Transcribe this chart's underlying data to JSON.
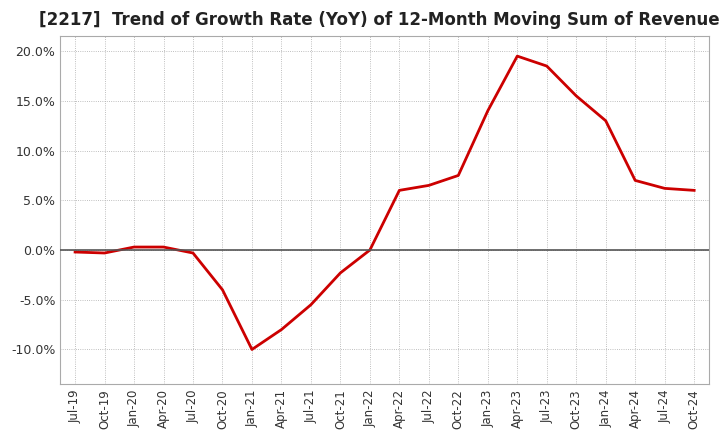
{
  "title": "[2217]  Trend of Growth Rate (YoY) of 12-Month Moving Sum of Revenues",
  "title_fontsize": 12,
  "background_color": "#ffffff",
  "plot_background_color": "#ffffff",
  "grid_color": "#aaaaaa",
  "line_color": "#cc0000",
  "zero_line_color": "#555555",
  "line_width": 2.0,
  "ylim": [
    -0.135,
    0.215
  ],
  "yticks": [
    -0.1,
    -0.05,
    0.0,
    0.05,
    0.1,
    0.15,
    0.2
  ],
  "x_labels": [
    "Jul-19",
    "Oct-19",
    "Jan-20",
    "Apr-20",
    "Jul-20",
    "Oct-20",
    "Jan-21",
    "Apr-21",
    "Jul-21",
    "Oct-21",
    "Jan-22",
    "Apr-22",
    "Jul-22",
    "Oct-22",
    "Jan-23",
    "Apr-23",
    "Jul-23",
    "Oct-23",
    "Jan-24",
    "Apr-24",
    "Jul-24",
    "Oct-24"
  ],
  "values": [
    -0.002,
    -0.003,
    0.003,
    0.003,
    -0.003,
    -0.04,
    -0.1,
    -0.08,
    -0.055,
    -0.023,
    0.0,
    0.06,
    0.065,
    0.075,
    0.14,
    0.195,
    0.185,
    0.155,
    0.13,
    0.07,
    0.062,
    0.06
  ]
}
